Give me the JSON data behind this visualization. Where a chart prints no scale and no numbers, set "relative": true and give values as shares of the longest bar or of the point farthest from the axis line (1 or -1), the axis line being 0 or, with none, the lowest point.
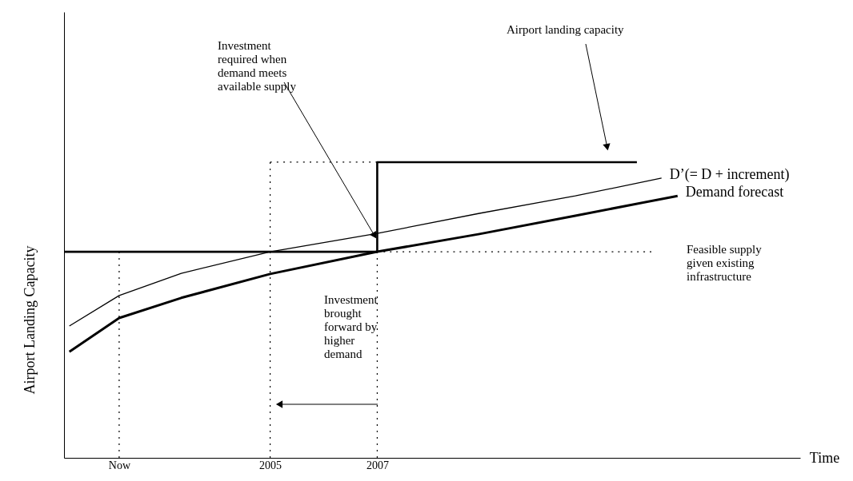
{
  "chart_data": {
    "type": "line",
    "relative": true,
    "xlabel": "Time",
    "xlim": [
      2001.15,
      2014.9
    ],
    "ylabel": "Airport Landing Capacity",
    "xticks": [
      {
        "value": 2002.18,
        "label": "Now"
      },
      2005,
      2007
    ],
    "tick_labels": "x",
    "series": [
      {
        "name": "Demand forecast",
        "color": "#000000",
        "x": [
          2001.25,
          2002.18,
          2003.34,
          2005,
          2007,
          2008.91,
          2010.7,
          2012.61
        ],
        "values": [
          0.359,
          0.473,
          0.541,
          0.622,
          0.697,
          0.757,
          0.819,
          0.886
        ]
      },
      {
        "name": "D’(= D + increment)",
        "color": "#000000",
        "x": [
          2001.25,
          2002.18,
          2003.34,
          2005,
          2007,
          2008.91,
          2010.7,
          2012.31
        ],
        "values": [
          0.446,
          0.549,
          0.624,
          0.697,
          0.759,
          0.827,
          0.886,
          0.946
        ]
      },
      {
        "color": "#000000",
        "x": [
          2001.15,
          2007,
          2007,
          2011.85
        ],
        "values": [
          0.697,
          0.697,
          1,
          1
        ]
      },
      {
        "color": "#000000",
        "line_style": "dotted",
        "x": [
          2002.18,
          2002.18
        ],
        "values": [
          0,
          0.697
        ]
      },
      {
        "color": "#000000",
        "line_style": "dotted",
        "x": [
          2005,
          2005
        ],
        "values": [
          0,
          1
        ]
      },
      {
        "color": "#000000",
        "line_style": "dotted",
        "x": [
          2007,
          2007
        ],
        "values": [
          0,
          0.697
        ]
      },
      {
        "color": "#000000",
        "line_style": "dotted",
        "x": [
          2005,
          2007
        ],
        "values": [
          1,
          1
        ]
      },
      {
        "color": "#000000",
        "line_style": "dotted",
        "x": [
          2007,
          2012.12
        ],
        "values": [
          0.697,
          0.697
        ]
      }
    ],
    "annotations": [
      "Investment\nrequired when\ndemand meets\navailable supply",
      "Airport landing capacity",
      {
        "text": "Feasible supply\ngiven existing\ninfrastructure",
        "x": 2012.12,
        "y": 0.697
      },
      "Investment\nbrought\nforward by\nhigher\ndemand"
    ]
  }
}
